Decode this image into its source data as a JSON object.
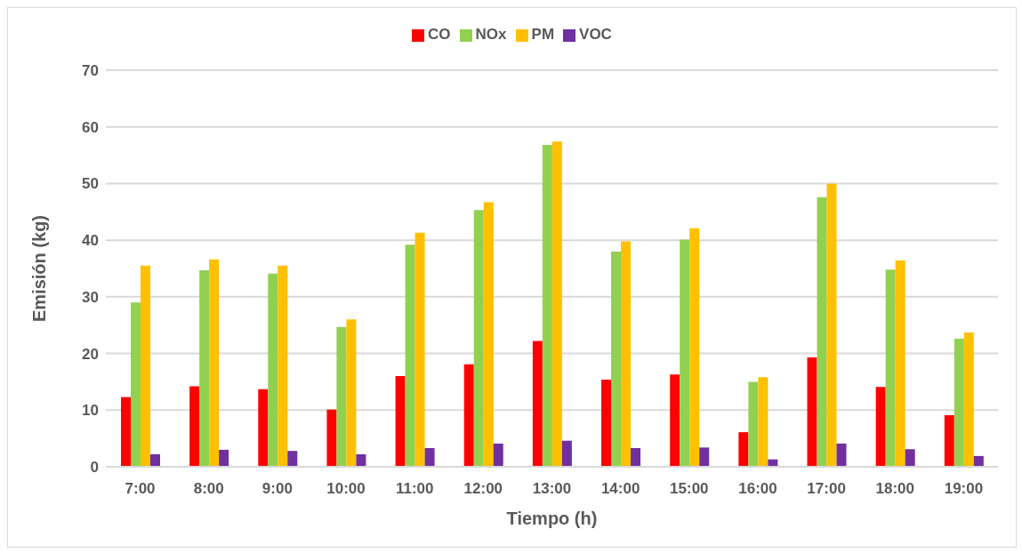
{
  "chart_data": {
    "type": "bar",
    "xlabel": "Tiempo (h)",
    "ylabel": "Emisión (kg)",
    "categories": [
      "7:00",
      "8:00",
      "9:00",
      "10:00",
      "11:00",
      "12:00",
      "13:00",
      "14:00",
      "15:00",
      "16:00",
      "17:00",
      "18:00",
      "19:00"
    ],
    "series": [
      {
        "name": "CO",
        "color": "#ff0000",
        "values": [
          12.3,
          14.2,
          13.7,
          10.1,
          16.0,
          18.1,
          22.2,
          15.4,
          16.3,
          6.1,
          19.3,
          14.1,
          9.1
        ]
      },
      {
        "name": "NOx",
        "color": "#92d050",
        "values": [
          29.0,
          34.7,
          34.1,
          24.7,
          39.2,
          45.3,
          56.8,
          38.0,
          40.1,
          15.0,
          47.6,
          34.8,
          22.6
        ]
      },
      {
        "name": "PM",
        "color": "#ffc000",
        "values": [
          35.5,
          36.6,
          35.5,
          26.0,
          41.3,
          46.7,
          57.4,
          39.8,
          42.1,
          15.8,
          50.0,
          36.4,
          23.7
        ]
      },
      {
        "name": "VOC",
        "color": "#7030a0",
        "values": [
          2.2,
          3.0,
          2.8,
          2.2,
          3.3,
          4.1,
          4.6,
          3.3,
          3.4,
          1.3,
          4.1,
          3.1,
          1.9
        ]
      }
    ],
    "ylim": [
      0,
      70
    ],
    "yticks": [
      0,
      10,
      20,
      30,
      40,
      50,
      60,
      70
    ],
    "grid": "y",
    "legend": "top"
  }
}
